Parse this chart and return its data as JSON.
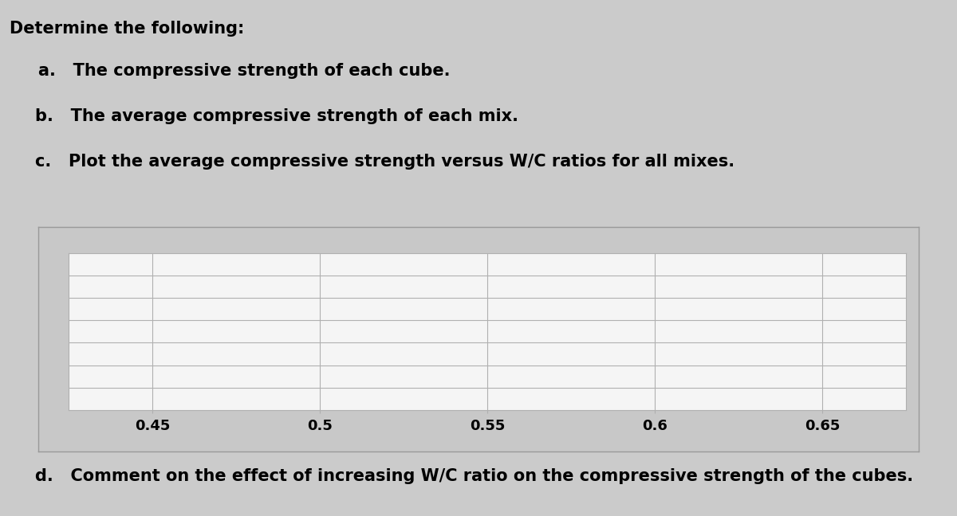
{
  "background_color": "#cbcbcb",
  "chart_outer_background": "#c8c8c8",
  "chart_inner_background": "#f5f5f5",
  "grid_color": "#b0b0b0",
  "text_color": "#000000",
  "title_text": "Determine the following:",
  "item_a": "a.   The compressive strength of each cube.",
  "item_b": "b.   The average compressive strength of each mix.",
  "item_c": "c.   Plot the average compressive strength versus W/C ratios for all mixes.",
  "item_d": "d.   Comment on the effect of increasing W/C ratio on the compressive strength of the cubes.",
  "x_ticks": [
    0.45,
    0.5,
    0.55,
    0.6,
    0.65
  ],
  "x_tick_labels": [
    "0.45",
    "0.5",
    "0.55",
    "0.6",
    "0.65"
  ],
  "n_horizontal_lines": 7,
  "font_size_title": 15,
  "font_size_body": 15,
  "font_size_tick": 13,
  "font_weight": "bold"
}
